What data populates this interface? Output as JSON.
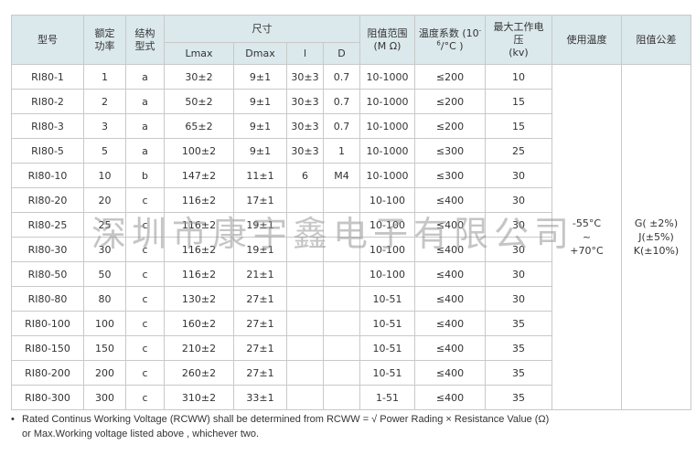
{
  "header": {
    "model": "型号",
    "power_line1": "额定",
    "power_line2": "功率",
    "type_line1": "结构",
    "type_line2": "型式",
    "size": "尺寸",
    "lmax": "Lmax",
    "dmax": "Dmax",
    "l": "l",
    "d": "D",
    "range_line1": "阻值范围",
    "range_line2": "(M Ω)",
    "tc_line1": "温度系数 (10",
    "tc_sup1": "-",
    "tc_sup2": "6",
    "tc_line2_rest": "/°C )",
    "voltage_line1": "最大工作电",
    "voltage_line2": "压",
    "voltage_line3": "(kv)",
    "temp": "使用温度",
    "tolerance": "阻值公差"
  },
  "rows": [
    {
      "model": "RI80-1",
      "power": "1",
      "type": "a",
      "lmax": "30±2",
      "dmax": "9±1",
      "l": "30±3",
      "d": "0.7",
      "range": "10-1000",
      "tc": "≤200",
      "voltage": "10"
    },
    {
      "model": "RI80-2",
      "power": "2",
      "type": "a",
      "lmax": "50±2",
      "dmax": "9±1",
      "l": "30±3",
      "d": "0.7",
      "range": "10-1000",
      "tc": "≤200",
      "voltage": "15"
    },
    {
      "model": "RI80-3",
      "power": "3",
      "type": "a",
      "lmax": "65±2",
      "dmax": "9±1",
      "l": "30±3",
      "d": "0.7",
      "range": "10-1000",
      "tc": "≤200",
      "voltage": "15"
    },
    {
      "model": "RI80-5",
      "power": "5",
      "type": "a",
      "lmax": "100±2",
      "dmax": "9±1",
      "l": "30±3",
      "d": "1",
      "range": "10-1000",
      "tc": "≤300",
      "voltage": "25"
    },
    {
      "model": "RI80-10",
      "power": "10",
      "type": "b",
      "lmax": "147±2",
      "dmax": "11±1",
      "l": "6",
      "d": "M4",
      "range": "10-1000",
      "tc": "≤300",
      "voltage": "30"
    },
    {
      "model": "RI80-20",
      "power": "20",
      "type": "c",
      "lmax": "116±2",
      "dmax": "17±1",
      "l": "",
      "d": "",
      "range": "10-100",
      "tc": "≤400",
      "voltage": "30"
    },
    {
      "model": "RI80-25",
      "power": "25",
      "type": "c",
      "lmax": "116±2",
      "dmax": "19±1",
      "l": "",
      "d": "",
      "range": "10-100",
      "tc": "≤400",
      "voltage": "30"
    },
    {
      "model": "RI80-30",
      "power": "30",
      "type": "c",
      "lmax": "116±2",
      "dmax": "19±1",
      "l": "",
      "d": "",
      "range": "10-100",
      "tc": "≤400",
      "voltage": "30"
    },
    {
      "model": "RI80-50",
      "power": "50",
      "type": "c",
      "lmax": "116±2",
      "dmax": "21±1",
      "l": "",
      "d": "",
      "range": "10-100",
      "tc": "≤400",
      "voltage": "30"
    },
    {
      "model": "RI80-80",
      "power": "80",
      "type": "c",
      "lmax": "130±2",
      "dmax": "27±1",
      "l": "",
      "d": "",
      "range": "10-51",
      "tc": "≤400",
      "voltage": "30"
    },
    {
      "model": "RI80-100",
      "power": "100",
      "type": "c",
      "lmax": "160±2",
      "dmax": "27±1",
      "l": "",
      "d": "",
      "range": "10-51",
      "tc": "≤400",
      "voltage": "35"
    },
    {
      "model": "RI80-150",
      "power": "150",
      "type": "c",
      "lmax": "210±2",
      "dmax": "27±1",
      "l": "",
      "d": "",
      "range": "10-51",
      "tc": "≤400",
      "voltage": "35"
    },
    {
      "model": "RI80-200",
      "power": "200",
      "type": "c",
      "lmax": "260±2",
      "dmax": "27±1",
      "l": "",
      "d": "",
      "range": "10-51",
      "tc": "≤400",
      "voltage": "35"
    },
    {
      "model": "RI80-300",
      "power": "300",
      "type": "c",
      "lmax": "310±2",
      "dmax": "33±1",
      "l": "",
      "d": "",
      "range": "1-51",
      "tc": "≤400",
      "voltage": "35"
    }
  ],
  "merged": {
    "temp": "-55°C\n~\n+70°C",
    "tolerance": "G( ±2%)\nJ(±5%)\nK(±10%)"
  },
  "watermark": "深圳市康宇鑫电子有限公司",
  "note": {
    "bullet": "•",
    "line1": "Rated Continus Working Voltage (RCWW) shall be determined from RCWW = √ Power Rading × Resistance Value (Ω)",
    "line2": "or Max.Working voltage listed above , whichever two."
  }
}
